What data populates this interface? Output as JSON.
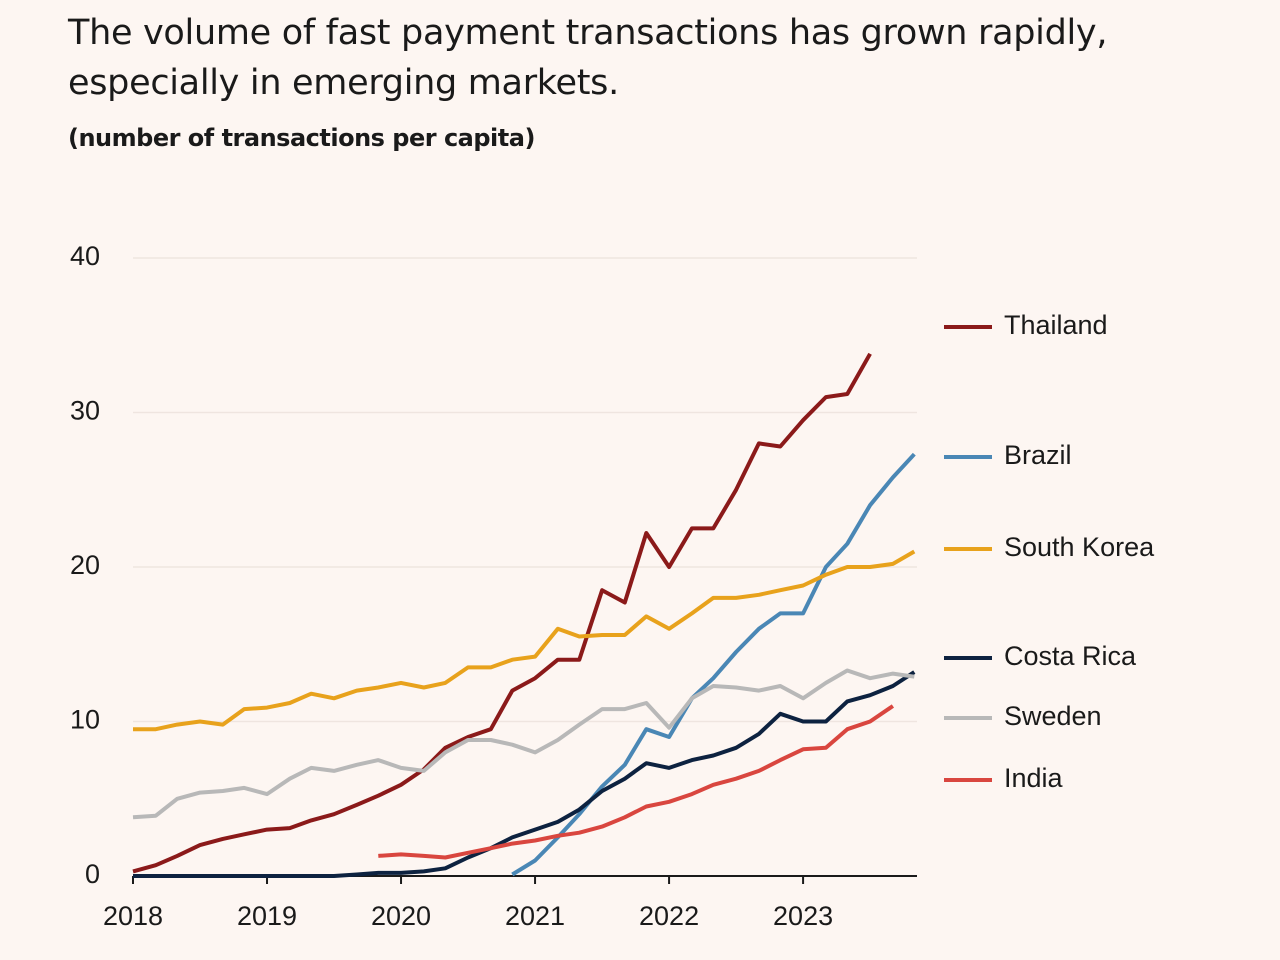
{
  "chart_data": {
    "type": "line",
    "title": "The volume of fast payment transactions has grown rapidly, especially in emerging markets.",
    "subtitle": "(number of transactions per capita)",
    "x": [
      2018,
      2018.17,
      2018.33,
      2018.5,
      2018.67,
      2018.83,
      2019,
      2019.17,
      2019.33,
      2019.5,
      2019.67,
      2019.83,
      2020,
      2020.17,
      2020.33,
      2020.5,
      2020.67,
      2020.83,
      2021,
      2021.17,
      2021.33,
      2021.5,
      2021.67,
      2021.83,
      2022,
      2022.17,
      2022.33,
      2022.5,
      2022.67,
      2022.83,
      2023,
      2023.17,
      2023.33,
      2023.5,
      2023.67,
      2023.83
    ],
    "xlim": [
      2018,
      2023.85
    ],
    "xticks": [
      2018,
      2019,
      2020,
      2021,
      2022,
      2023
    ],
    "ylim": [
      0,
      40
    ],
    "yticks": [
      0,
      10,
      20,
      30,
      40
    ],
    "grid": true,
    "legend": "right",
    "series": [
      {
        "name": "Thailand",
        "color": "#8b1a1a",
        "values": [
          0.3,
          0.7,
          1.3,
          2.0,
          2.4,
          2.7,
          3.0,
          3.1,
          3.6,
          4.0,
          4.6,
          5.2,
          5.9,
          6.9,
          8.3,
          9.0,
          9.5,
          12.0,
          12.8,
          14.0,
          14.0,
          18.5,
          17.7,
          22.2,
          20.0,
          22.5,
          22.5,
          25.0,
          28.0,
          27.8,
          29.5,
          31.0,
          31.2,
          33.8,
          null,
          null
        ]
      },
      {
        "name": "Brazil",
        "color": "#4a87b5",
        "values": [
          null,
          null,
          null,
          null,
          null,
          null,
          null,
          null,
          null,
          null,
          null,
          null,
          null,
          null,
          null,
          null,
          null,
          0.1,
          1.0,
          2.5,
          4.0,
          5.8,
          7.2,
          9.5,
          9.0,
          11.5,
          12.8,
          14.5,
          16.0,
          17.0,
          17.0,
          20.0,
          21.5,
          24.0,
          25.8,
          27.3
        ]
      },
      {
        "name": "South Korea",
        "color": "#e8a21c",
        "values": [
          9.5,
          9.5,
          9.8,
          10.0,
          9.8,
          10.8,
          10.9,
          11.2,
          11.8,
          11.5,
          12.0,
          12.2,
          12.5,
          12.2,
          12.5,
          13.5,
          13.5,
          14.0,
          14.2,
          16.0,
          15.5,
          15.6,
          15.6,
          16.8,
          16.0,
          17.0,
          18.0,
          18.0,
          18.2,
          18.5,
          18.8,
          19.5,
          20.0,
          20.0,
          20.2,
          21.0
        ]
      },
      {
        "name": "Costa Rica",
        "color": "#0d2240",
        "values": [
          0,
          0,
          0,
          0,
          0,
          0,
          0,
          0,
          0,
          0,
          0.1,
          0.2,
          0.2,
          0.3,
          0.5,
          1.2,
          1.8,
          2.5,
          3.0,
          3.5,
          4.3,
          5.5,
          6.3,
          7.3,
          7.0,
          7.5,
          7.8,
          8.3,
          9.2,
          10.5,
          10.0,
          10.0,
          11.3,
          11.7,
          12.3,
          13.2
        ]
      },
      {
        "name": "Sweden",
        "color": "#b8b8b8",
        "values": [
          3.8,
          3.9,
          5.0,
          5.4,
          5.5,
          5.7,
          5.3,
          6.3,
          7.0,
          6.8,
          7.2,
          7.5,
          7.0,
          6.8,
          8.0,
          8.8,
          8.8,
          8.5,
          8.0,
          8.8,
          9.8,
          10.8,
          10.8,
          11.2,
          9.6,
          11.5,
          12.3,
          12.2,
          12.0,
          12.3,
          11.5,
          12.5,
          13.3,
          12.8,
          13.1,
          12.9
        ]
      },
      {
        "name": "India",
        "color": "#d9463f",
        "values": [
          null,
          null,
          null,
          null,
          null,
          null,
          null,
          null,
          null,
          null,
          null,
          1.3,
          1.4,
          1.3,
          1.2,
          1.5,
          1.8,
          2.1,
          2.3,
          2.6,
          2.8,
          3.2,
          3.8,
          4.5,
          4.8,
          5.3,
          5.9,
          6.3,
          6.8,
          7.5,
          8.2,
          8.3,
          9.5,
          10.0,
          11.0,
          null
        ]
      }
    ]
  }
}
